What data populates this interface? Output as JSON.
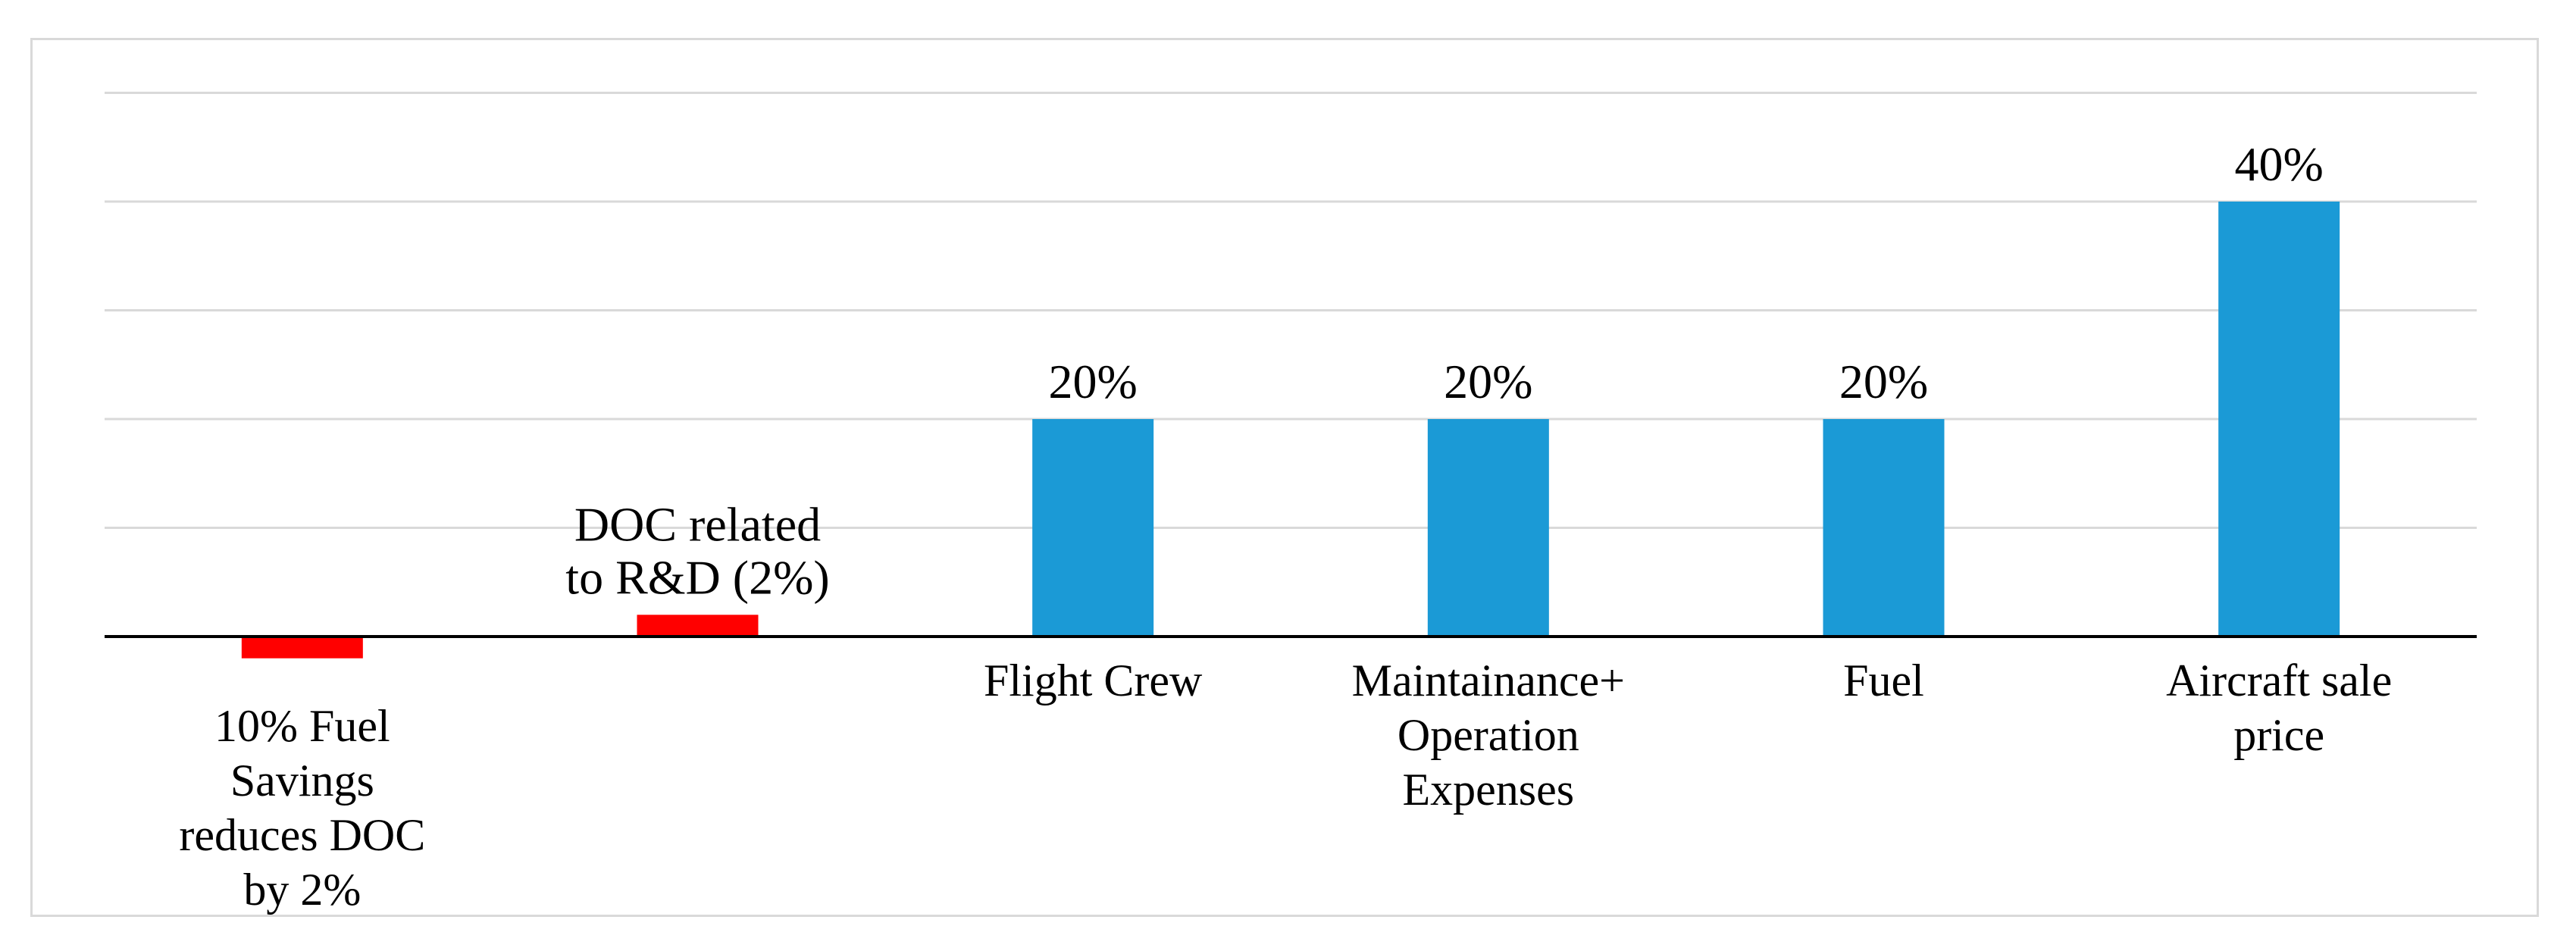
{
  "chart_data": {
    "type": "bar",
    "categories": [
      [
        "10% Fuel",
        "Savings",
        "reduces DOC",
        "by 2%"
      ],
      [],
      [
        "Flight Crew"
      ],
      [
        "Maintainance+",
        "Operation",
        "Expenses"
      ],
      [
        "Fuel"
      ],
      [
        "Aircraft sale",
        "price"
      ]
    ],
    "values": [
      -2,
      2,
      20,
      20,
      20,
      40
    ],
    "data_labels": [
      [],
      [
        "DOC related",
        "to R&D (2%)"
      ],
      [
        "20%"
      ],
      [
        "20%"
      ],
      [
        "20%"
      ],
      [
        "40%"
      ]
    ],
    "colors": [
      "#ff0000",
      "#ff0000",
      "#1b9ad6",
      "#1b9ad6",
      "#1b9ad6",
      "#1b9ad6"
    ],
    "ylim": [
      -2,
      45
    ],
    "gridlines": [
      10,
      20,
      30,
      40,
      50
    ],
    "grid": true,
    "legend": "none",
    "title": "",
    "xlabel": "",
    "ylabel": ""
  }
}
